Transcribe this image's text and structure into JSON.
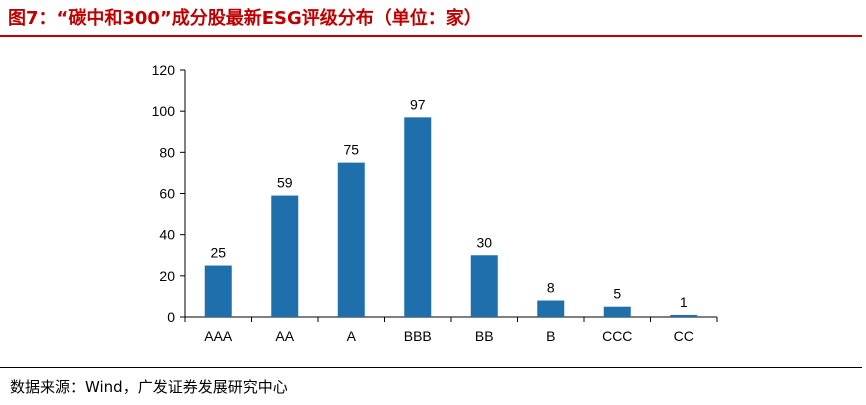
{
  "figure": {
    "title": "图7：“碳中和300”成分股最新ESG评级分布（单位：家）",
    "source": "数据来源：Wind，广发证券发展研究中心"
  },
  "chart_data": {
    "type": "bar",
    "categories": [
      "AAA",
      "AA",
      "A",
      "BBB",
      "BB",
      "B",
      "CCC",
      "CC"
    ],
    "values": [
      25,
      59,
      75,
      97,
      30,
      8,
      5,
      1
    ],
    "yticks": [
      0,
      20,
      40,
      60,
      80,
      100,
      120
    ],
    "ylim": [
      0,
      120
    ],
    "bar_color": "#1f6fad",
    "grid": false,
    "legend": false,
    "data_labels": true
  }
}
